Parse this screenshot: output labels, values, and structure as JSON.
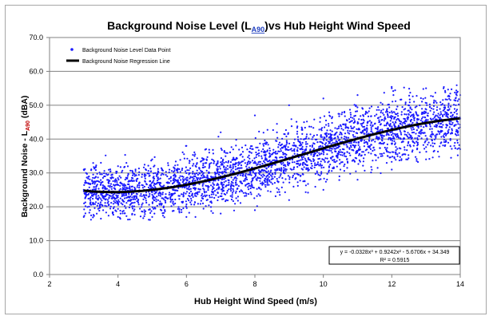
{
  "chart_data": {
    "type": "scatter",
    "title": "Background Noise Level (LA90)vs Hub Height Wind Speed",
    "title_parts": {
      "prefix": "Background Noise Level (L",
      "subscript": "A90",
      "suffix": ")vs Hub Height Wind Speed"
    },
    "xlabel": "Hub Height Wind Speed (m/s)",
    "ylabel": "Background Noise - LA90 (dBA)",
    "ylabel_parts": {
      "prefix": "Background Noise - L",
      "subscript": "A90",
      "suffix": " (dBA)"
    },
    "xlim": [
      2,
      14
    ],
    "ylim": [
      0,
      70
    ],
    "x_ticks": [
      "2",
      "4",
      "6",
      "8",
      "10",
      "12",
      "14"
    ],
    "y_ticks": [
      "0.0",
      "10.0",
      "20.0",
      "30.0",
      "40.0",
      "50.0",
      "60.0",
      "70.0"
    ],
    "grid": "horizontal",
    "legend_position": "top-left",
    "series": [
      {
        "name": "Background Noise Level Data Point",
        "kind": "scatter",
        "color": "#1a1aff",
        "x_range": [
          3.0,
          14.0
        ],
        "sample_points": [
          [
            3.0,
            25.0
          ],
          [
            3.0,
            17.0
          ],
          [
            3.0,
            31.0
          ],
          [
            3.5,
            24.0
          ],
          [
            3.5,
            16.5
          ],
          [
            3.5,
            33.0
          ],
          [
            4.0,
            24.0
          ],
          [
            4.0,
            17.0
          ],
          [
            4.0,
            32.0
          ],
          [
            5.0,
            24.5
          ],
          [
            5.0,
            17.0
          ],
          [
            5.0,
            34.0
          ],
          [
            6.0,
            26.0
          ],
          [
            6.0,
            17.0
          ],
          [
            6.0,
            38.0
          ],
          [
            7.0,
            28.5
          ],
          [
            7.0,
            18.0
          ],
          [
            7.0,
            42.0
          ],
          [
            8.0,
            31.5
          ],
          [
            8.0,
            19.0
          ],
          [
            8.0,
            47.0
          ],
          [
            9.0,
            34.5
          ],
          [
            9.0,
            22.0
          ],
          [
            9.0,
            50.0
          ],
          [
            10.0,
            37.5
          ],
          [
            10.0,
            25.0
          ],
          [
            10.0,
            52.0
          ],
          [
            11.0,
            40.5
          ],
          [
            11.0,
            28.0
          ],
          [
            11.0,
            53.0
          ],
          [
            12.0,
            43.0
          ],
          [
            12.0,
            31.0
          ],
          [
            12.0,
            55.0
          ],
          [
            13.0,
            45.0
          ],
          [
            13.0,
            34.0
          ],
          [
            13.0,
            55.0
          ],
          [
            14.0,
            46.0
          ],
          [
            14.0,
            37.0
          ],
          [
            14.0,
            53.0
          ]
        ]
      },
      {
        "name": "Background Noise Regression Line",
        "kind": "line",
        "color": "#000000",
        "equation_coefficients": {
          "a3": -0.0328,
          "a2": 0.9242,
          "a1": -5.6706,
          "a0": 34.349
        },
        "x_range": [
          3,
          14
        ]
      }
    ],
    "annotation": {
      "equation": "y = -0.0328x³ + 0.9242x² - 5.6706x + 34.349",
      "r_squared": "R² = 0.5915"
    }
  }
}
